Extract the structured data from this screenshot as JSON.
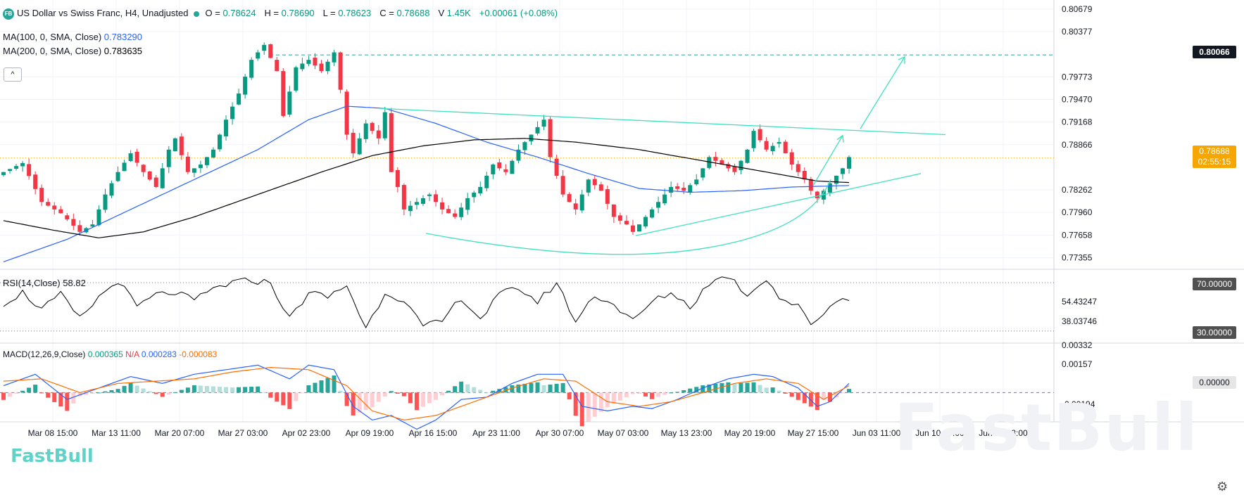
{
  "header": {
    "logo": "FB",
    "title": "US Dollar vs Swiss Franc, H4, Unadjusted",
    "o_label": "O",
    "o": "0.78624",
    "h_label": "H",
    "h": "0.78690",
    "l_label": "L",
    "l": "0.78623",
    "c_label": "C",
    "c": "0.78688",
    "v_label": "V",
    "v": "1.45K",
    "change": "+0.00061 (+0.08%)"
  },
  "ma100": {
    "label": "MA(100, 0, SMA, Close)",
    "value": "0.783290",
    "color": "#2962ff"
  },
  "ma200": {
    "label": "MA(200, 0, SMA, Close)",
    "value": "0.783635",
    "color": "#000000"
  },
  "collapse_button": "^",
  "rsi": {
    "label": "RSI(14,Close)",
    "value": "58.82"
  },
  "macd": {
    "label": "MACD(12,26,9,Close)",
    "macd": "0.000365",
    "na": "N/A",
    "signal": "0.000283",
    "hist": "-0.000083"
  },
  "price_labels": {
    "current": "0.78688",
    "countdown": "02:55:15",
    "resistance": "0.80066",
    "rsi_70": "70.00000",
    "rsi_30": "30.00000",
    "macd_zero": "0.00000"
  },
  "brand": "FastBull",
  "watermark": "FastBull",
  "colors": {
    "up": "#089981",
    "down": "#f23645",
    "trendline": "#40e0c0",
    "accent_tag": "#f7a600"
  },
  "chart_data": {
    "type": "candlestick",
    "title": "US Dollar vs Swiss Franc, H4, Unadjusted",
    "x_tick_labels": [
      "Mar 08 15:00",
      "Mar 13 11:00",
      "Mar 20 07:00",
      "Mar 27 03:00",
      "Apr 02 23:00",
      "Apr 09 19:00",
      "Apr 16 15:00",
      "Apr 23 11:00",
      "Apr 30 07:00",
      "May 07 03:00",
      "May 13 23:00",
      "May 20 19:00",
      "May 27 15:00",
      "Jun 03 11:00",
      "Jun 10 07:00",
      "Jun 17 03:00"
    ],
    "y_tick_labels": [
      "0.80679",
      "0.80377",
      "0.79773",
      "0.79470",
      "0.79168",
      "0.78866",
      "0.78262",
      "0.77960",
      "0.77658",
      "0.77355"
    ],
    "ylim": [
      0.772,
      0.808
    ],
    "price_path": [
      [
        0,
        0.785
      ],
      [
        3,
        0.7862
      ],
      [
        6,
        0.781
      ],
      [
        9,
        0.7795
      ],
      [
        12,
        0.777
      ],
      [
        14,
        0.778
      ],
      [
        16,
        0.782
      ],
      [
        18,
        0.785
      ],
      [
        20,
        0.7875
      ],
      [
        22,
        0.785
      ],
      [
        24,
        0.783
      ],
      [
        26,
        0.788
      ],
      [
        27,
        0.7895
      ],
      [
        29,
        0.785
      ],
      [
        31,
        0.786
      ],
      [
        33,
        0.788
      ],
      [
        35,
        0.792
      ],
      [
        37,
        0.7955
      ],
      [
        39,
        0.8
      ],
      [
        41,
        0.802
      ],
      [
        43,
        0.7985
      ],
      [
        44,
        0.7925
      ],
      [
        46,
        0.799
      ],
      [
        48,
        0.8
      ],
      [
        50,
        0.7985
      ],
      [
        52,
        0.801
      ],
      [
        53,
        0.796
      ],
      [
        54,
        0.79
      ],
      [
        55,
        0.7875
      ],
      [
        57,
        0.7915
      ],
      [
        59,
        0.7895
      ],
      [
        60,
        0.793
      ],
      [
        61,
        0.785
      ],
      [
        62,
        0.783
      ],
      [
        63,
        0.78
      ],
      [
        65,
        0.781
      ],
      [
        67,
        0.782
      ],
      [
        69,
        0.78
      ],
      [
        71,
        0.779
      ],
      [
        73,
        0.7815
      ],
      [
        75,
        0.783
      ],
      [
        77,
        0.786
      ],
      [
        79,
        0.785
      ],
      [
        81,
        0.788
      ],
      [
        83,
        0.79
      ],
      [
        85,
        0.792
      ],
      [
        86,
        0.787
      ],
      [
        88,
        0.782
      ],
      [
        90,
        0.78
      ],
      [
        92,
        0.784
      ],
      [
        94,
        0.7825
      ],
      [
        96,
        0.779
      ],
      [
        98,
        0.778
      ],
      [
        99,
        0.777
      ],
      [
        101,
        0.779
      ],
      [
        103,
        0.781
      ],
      [
        105,
        0.783
      ],
      [
        107,
        0.7825
      ],
      [
        109,
        0.784
      ],
      [
        111,
        0.787
      ],
      [
        113,
        0.786
      ],
      [
        115,
        0.785
      ],
      [
        117,
        0.788
      ],
      [
        118,
        0.7905
      ],
      [
        120,
        0.788
      ],
      [
        122,
        0.789
      ],
      [
        124,
        0.786
      ],
      [
        126,
        0.784
      ],
      [
        127,
        0.7825
      ],
      [
        128,
        0.7815
      ],
      [
        129,
        0.7825
      ],
      [
        131,
        0.7845
      ],
      [
        132,
        0.7855
      ],
      [
        133,
        0.787
      ]
    ],
    "ma100_path": [
      [
        0,
        0.773
      ],
      [
        10,
        0.776
      ],
      [
        20,
        0.78
      ],
      [
        30,
        0.784
      ],
      [
        40,
        0.788
      ],
      [
        48,
        0.792
      ],
      [
        54,
        0.7938
      ],
      [
        60,
        0.7935
      ],
      [
        68,
        0.7915
      ],
      [
        76,
        0.789
      ],
      [
        84,
        0.787
      ],
      [
        92,
        0.7848
      ],
      [
        100,
        0.7828
      ],
      [
        108,
        0.7823
      ],
      [
        116,
        0.7825
      ],
      [
        124,
        0.783
      ],
      [
        133,
        0.7832
      ]
    ],
    "ma200_path": [
      [
        0,
        0.7785
      ],
      [
        8,
        0.7772
      ],
      [
        15,
        0.7762
      ],
      [
        22,
        0.777
      ],
      [
        30,
        0.779
      ],
      [
        40,
        0.782
      ],
      [
        50,
        0.785
      ],
      [
        58,
        0.7872
      ],
      [
        66,
        0.7885
      ],
      [
        74,
        0.7893
      ],
      [
        82,
        0.7895
      ],
      [
        90,
        0.789
      ],
      [
        100,
        0.788
      ],
      [
        110,
        0.7865
      ],
      [
        120,
        0.785
      ],
      [
        128,
        0.7838
      ],
      [
        133,
        0.7836
      ]
    ],
    "rsi_path": [
      [
        0,
        53
      ],
      [
        3,
        62
      ],
      [
        6,
        48
      ],
      [
        9,
        60
      ],
      [
        12,
        40
      ],
      [
        15,
        58
      ],
      [
        18,
        72
      ],
      [
        21,
        50
      ],
      [
        24,
        60
      ],
      [
        27,
        62
      ],
      [
        30,
        55
      ],
      [
        33,
        65
      ],
      [
        36,
        70
      ],
      [
        39,
        72
      ],
      [
        42,
        70
      ],
      [
        45,
        40
      ],
      [
        48,
        62
      ],
      [
        51,
        58
      ],
      [
        54,
        68
      ],
      [
        57,
        32
      ],
      [
        60,
        62
      ],
      [
        63,
        56
      ],
      [
        66,
        33
      ],
      [
        69,
        38
      ],
      [
        72,
        58
      ],
      [
        75,
        40
      ],
      [
        78,
        60
      ],
      [
        81,
        66
      ],
      [
        84,
        54
      ],
      [
        87,
        70
      ],
      [
        90,
        38
      ],
      [
        93,
        60
      ],
      [
        96,
        52
      ],
      [
        99,
        38
      ],
      [
        102,
        54
      ],
      [
        105,
        62
      ],
      [
        108,
        50
      ],
      [
        111,
        70
      ],
      [
        114,
        76
      ],
      [
        117,
        60
      ],
      [
        120,
        74
      ],
      [
        122,
        58
      ],
      [
        125,
        50
      ],
      [
        127,
        36
      ],
      [
        129,
        45
      ],
      [
        131,
        55
      ],
      [
        133,
        58
      ]
    ],
    "macd_path": [
      [
        0,
        0.0003
      ],
      [
        5,
        0.0008
      ],
      [
        10,
        -0.0003
      ],
      [
        15,
        0.0002
      ],
      [
        20,
        0.0007
      ],
      [
        25,
        0.0004
      ],
      [
        30,
        0.0008
      ],
      [
        35,
        0.001
      ],
      [
        40,
        0.0012
      ],
      [
        45,
        0.0006
      ],
      [
        48,
        0.0012
      ],
      [
        52,
        0.001
      ],
      [
        55,
        -0.0006
      ],
      [
        58,
        -0.0012
      ],
      [
        61,
        -0.001
      ],
      [
        65,
        -0.0016
      ],
      [
        68,
        -0.0012
      ],
      [
        72,
        -0.0003
      ],
      [
        76,
        -0.0002
      ],
      [
        80,
        0.0004
      ],
      [
        84,
        0.0008
      ],
      [
        88,
        0.0008
      ],
      [
        91,
        -0.0006
      ],
      [
        95,
        -0.0008
      ],
      [
        99,
        -0.0006
      ],
      [
        102,
        -0.0007
      ],
      [
        106,
        -0.0003
      ],
      [
        110,
        0.0002
      ],
      [
        114,
        0.0006
      ],
      [
        118,
        0.0008
      ],
      [
        121,
        0.0007
      ],
      [
        125,
        0.0002
      ],
      [
        128,
        -0.0006
      ],
      [
        130,
        -0.0004
      ],
      [
        133,
        0.0004
      ]
    ],
    "signal_path": [
      [
        0,
        0.0005
      ],
      [
        6,
        0.0006
      ],
      [
        12,
        0.0
      ],
      [
        18,
        0.0004
      ],
      [
        24,
        0.0005
      ],
      [
        30,
        0.0006
      ],
      [
        36,
        0.0009
      ],
      [
        42,
        0.0011
      ],
      [
        48,
        0.001
      ],
      [
        54,
        0.0003
      ],
      [
        58,
        -0.0008
      ],
      [
        63,
        -0.0012
      ],
      [
        68,
        -0.001
      ],
      [
        74,
        -0.0004
      ],
      [
        80,
        0.0002
      ],
      [
        85,
        0.0006
      ],
      [
        90,
        0.0005
      ],
      [
        95,
        -0.0004
      ],
      [
        100,
        -0.0006
      ],
      [
        105,
        -0.0004
      ],
      [
        110,
        0.0
      ],
      [
        115,
        0.0004
      ],
      [
        120,
        0.0006
      ],
      [
        125,
        0.0004
      ],
      [
        129,
        -0.0003
      ],
      [
        133,
        0.0003
      ]
    ],
    "macd_ylim": [
      -0.0022,
      0.0021
    ],
    "rsi_ylim": [
      20,
      80
    ],
    "annotations": [
      "resistance 0.80066",
      "descending trendline",
      "rising support line",
      "rounded bottom curve",
      "projected up arrow"
    ]
  }
}
